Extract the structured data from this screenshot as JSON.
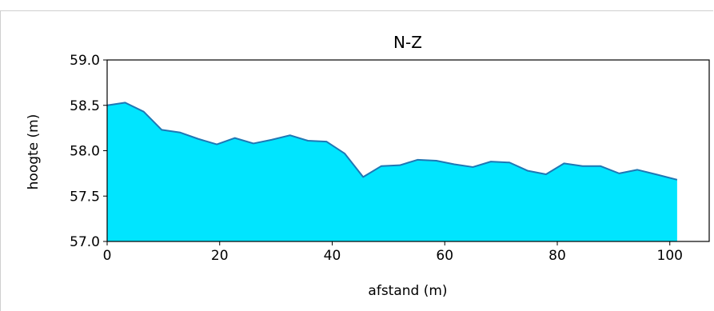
{
  "chart_data": {
    "type": "area",
    "title": "N-Z",
    "xlabel": "afstand (m)",
    "ylabel": "hoogte (m)",
    "xlim": [
      0,
      107
    ],
    "ylim": [
      57.0,
      59.0
    ],
    "xticks": [
      0,
      20,
      40,
      60,
      80,
      100
    ],
    "xtick_labels": [
      "0",
      "20",
      "40",
      "60",
      "80",
      "100"
    ],
    "yticks": [
      57.0,
      57.5,
      58.0,
      58.5,
      59.0
    ],
    "ytick_labels": [
      "57.0",
      "57.5",
      "58.0",
      "58.5",
      "59.0"
    ],
    "grid": false,
    "fill_color": "#00e5ff",
    "line_color": "#1f77b4",
    "series": [
      {
        "x": [
          0,
          3.2,
          6.5,
          9.7,
          13.0,
          16.2,
          19.5,
          22.7,
          26.0,
          29.2,
          32.5,
          35.7,
          39.0,
          42.2,
          45.5,
          48.7,
          52.0,
          55.2,
          58.5,
          61.7,
          65.0,
          68.2,
          71.5,
          74.7,
          78.0,
          81.2,
          84.5,
          87.7,
          91.0,
          94.2,
          97.5,
          101.3
        ],
        "y": [
          58.5,
          58.53,
          58.43,
          58.23,
          58.2,
          58.13,
          58.07,
          58.14,
          58.08,
          58.12,
          58.17,
          58.11,
          58.1,
          57.97,
          57.71,
          57.83,
          57.84,
          57.9,
          57.89,
          57.85,
          57.82,
          57.88,
          57.87,
          57.78,
          57.74,
          57.86,
          57.83,
          57.83,
          57.75,
          57.79,
          57.74,
          57.68
        ]
      }
    ]
  }
}
